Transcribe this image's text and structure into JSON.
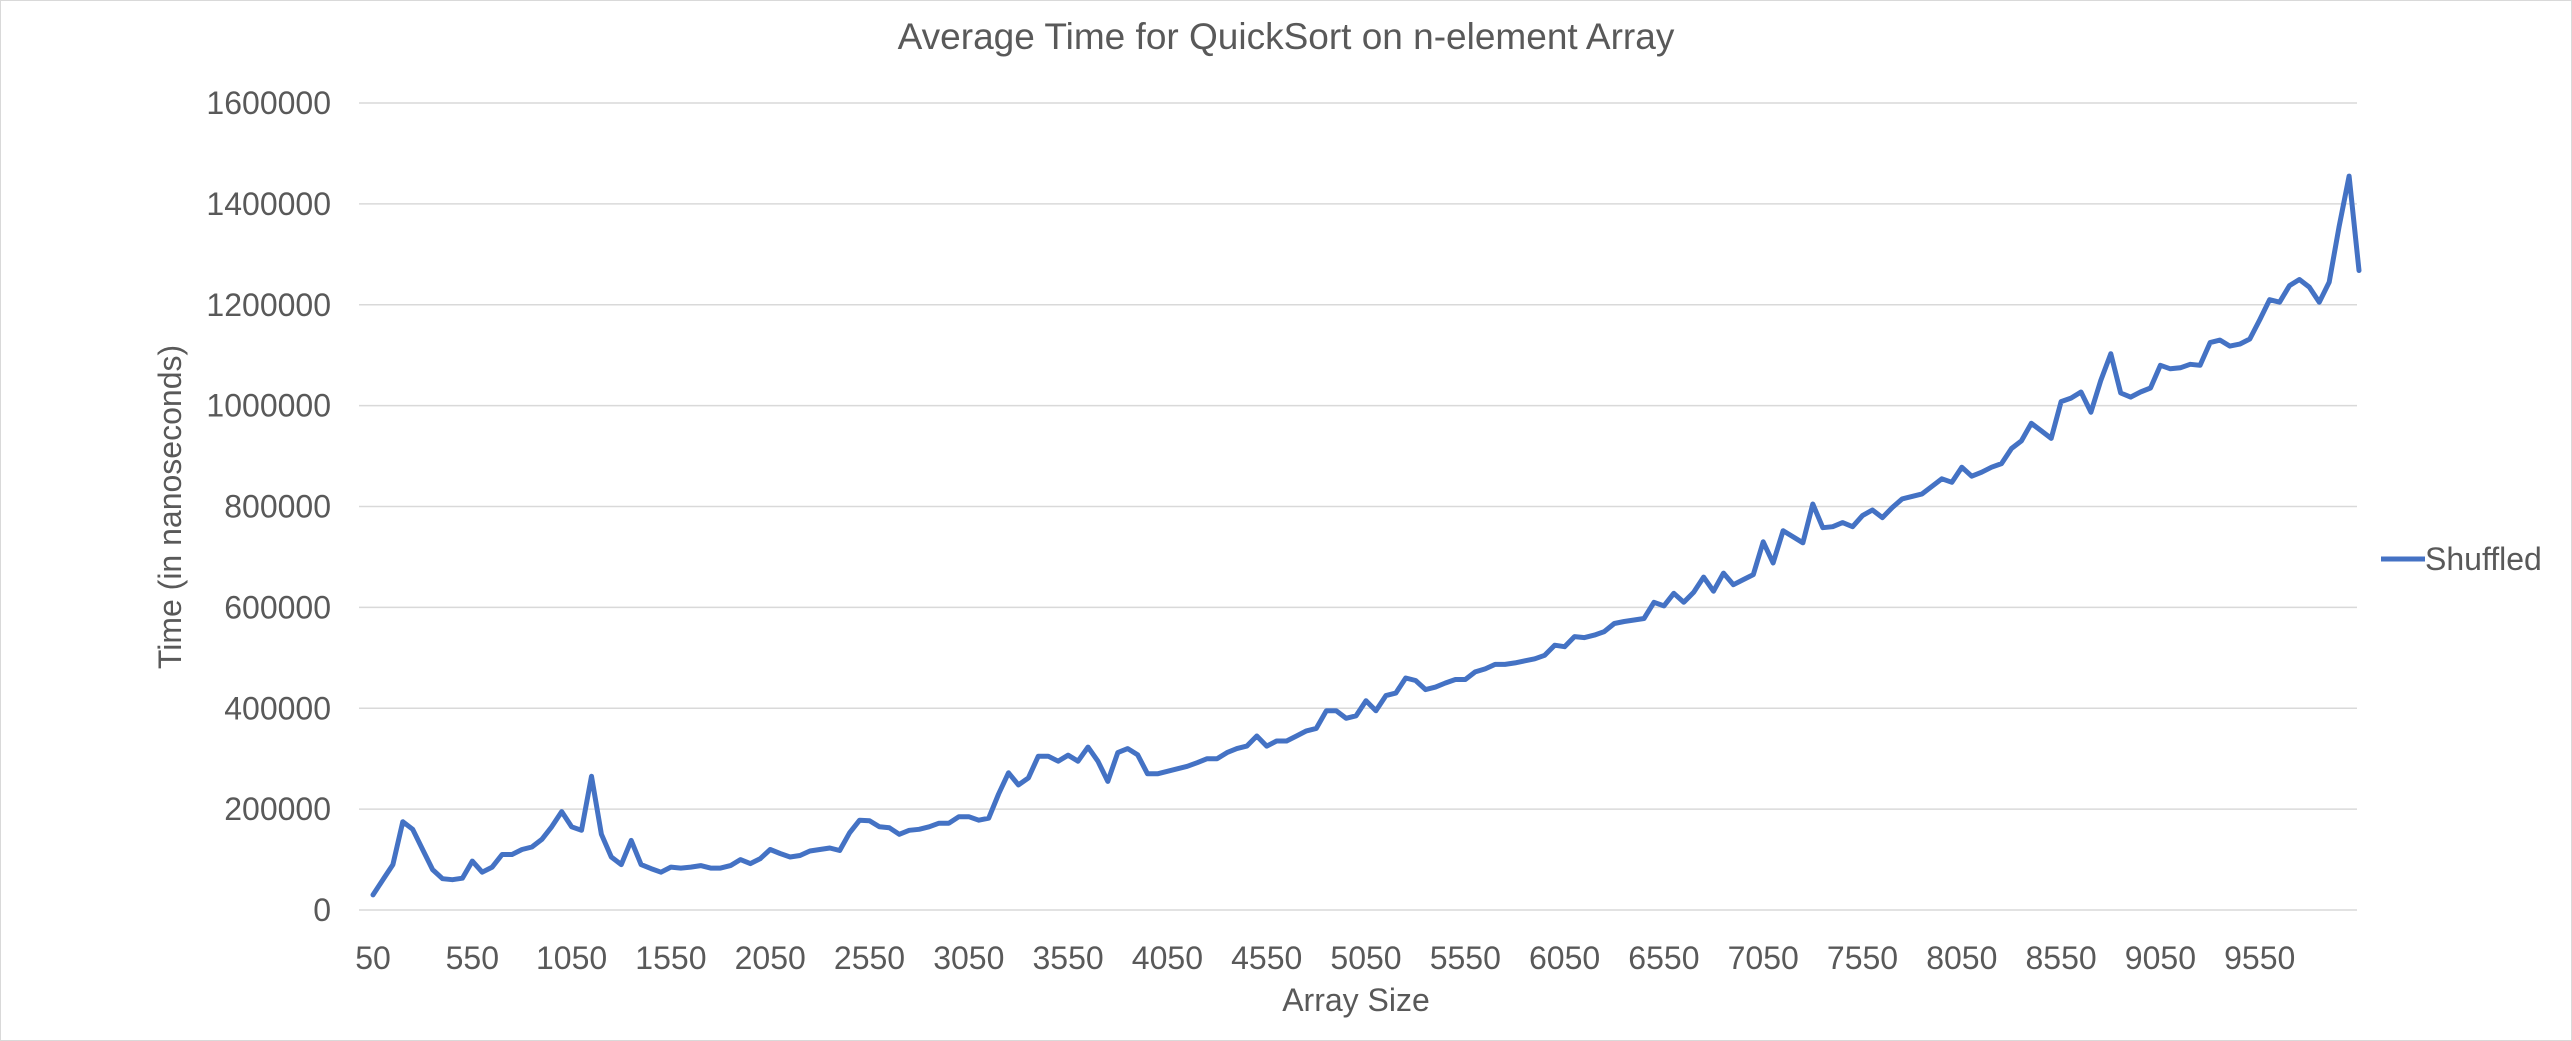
{
  "chart_data": {
    "type": "line",
    "title": "Average Time for QuickSort on n-element Array",
    "xlabel": "Array Size",
    "ylabel": "Time (in nanoseconds)",
    "ylim": [
      0,
      1600000
    ],
    "yticks": [
      "0",
      "200000",
      "400000",
      "600000",
      "800000",
      "1000000",
      "1200000",
      "1400000",
      "1600000"
    ],
    "xticks": [
      "50",
      "550",
      "1050",
      "1550",
      "2050",
      "2550",
      "3050",
      "3550",
      "4050",
      "4550",
      "5050",
      "5550",
      "6050",
      "6550",
      "7050",
      "7550",
      "8050",
      "8550",
      "9050",
      "9550"
    ],
    "grid": true,
    "legend_position": "right",
    "colors": {
      "series": "#4472c4",
      "grid": "#d9d9d9",
      "text": "#595959"
    },
    "x": [
      50,
      100,
      150,
      200,
      250,
      300,
      350,
      400,
      450,
      500,
      550,
      600,
      650,
      700,
      750,
      800,
      850,
      900,
      950,
      1000,
      1050,
      1100,
      1150,
      1200,
      1250,
      1300,
      1350,
      1400,
      1450,
      1500,
      1550,
      1600,
      1650,
      1700,
      1750,
      1800,
      1850,
      1900,
      1950,
      2000,
      2050,
      2100,
      2150,
      2200,
      2250,
      2300,
      2350,
      2400,
      2450,
      2500,
      2550,
      2600,
      2650,
      2700,
      2750,
      2800,
      2850,
      2900,
      2950,
      3000,
      3050,
      3100,
      3150,
      3200,
      3250,
      3300,
      3350,
      3400,
      3450,
      3500,
      3550,
      3600,
      3650,
      3700,
      3750,
      3800,
      3850,
      3900,
      3950,
      4000,
      4050,
      4100,
      4150,
      4200,
      4250,
      4300,
      4350,
      4400,
      4450,
      4500,
      4550,
      4600,
      4650,
      4700,
      4750,
      4800,
      4850,
      4900,
      4950,
      5000,
      5050,
      5100,
      5150,
      5200,
      5250,
      5300,
      5350,
      5400,
      5450,
      5500,
      5550,
      5600,
      5650,
      5700,
      5750,
      5800,
      5850,
      5900,
      5950,
      6000,
      6050,
      6100,
      6150,
      6200,
      6250,
      6300,
      6350,
      6400,
      6450,
      6500,
      6550,
      6600,
      6650,
      6700,
      6750,
      6800,
      6850,
      6900,
      6950,
      7000,
      7050,
      7100,
      7150,
      7200,
      7250,
      7300,
      7350,
      7400,
      7450,
      7500,
      7550,
      7600,
      7650,
      7700,
      7750,
      7800,
      7850,
      7900,
      7950,
      8000,
      8050,
      8100,
      8150,
      8200,
      8250,
      8300,
      8350,
      8400,
      8450,
      8500,
      8550,
      8600,
      8650,
      8700,
      8750,
      8800,
      8850,
      8900,
      8950,
      9000,
      9050,
      9100,
      9150,
      9200,
      9250,
      9300,
      9350,
      9400,
      9450,
      9500,
      9550,
      9600,
      9650,
      9700,
      9750,
      9800,
      9850,
      9900,
      9950,
      10000,
      10050
    ],
    "series": [
      {
        "name": "Shuffled",
        "values": [
          30000,
          60000,
          90000,
          175000,
          160000,
          120000,
          80000,
          62000,
          60000,
          63000,
          97000,
          75000,
          85000,
          110000,
          110000,
          120000,
          125000,
          140000,
          165000,
          195000,
          165000,
          158000,
          265000,
          150000,
          105000,
          90000,
          138000,
          90000,
          82000,
          75000,
          85000,
          83000,
          85000,
          88000,
          83000,
          83000,
          88000,
          100000,
          92000,
          102000,
          120000,
          112000,
          105000,
          108000,
          117000,
          120000,
          123000,
          118000,
          153000,
          178000,
          177000,
          165000,
          163000,
          150000,
          158000,
          160000,
          165000,
          172000,
          172000,
          185000,
          185000,
          178000,
          182000,
          230000,
          272000,
          248000,
          262000,
          305000,
          305000,
          295000,
          307000,
          295000,
          323000,
          295000,
          255000,
          312000,
          320000,
          308000,
          270000,
          270000,
          275000,
          280000,
          285000,
          292000,
          300000,
          300000,
          312000,
          320000,
          325000,
          345000,
          325000,
          335000,
          335000,
          345000,
          355000,
          360000,
          395000,
          395000,
          380000,
          385000,
          415000,
          395000,
          425000,
          430000,
          460000,
          455000,
          437000,
          442000,
          450000,
          457000,
          457000,
          472000,
          478000,
          487000,
          487000,
          490000,
          494000,
          498000,
          505000,
          525000,
          522000,
          542000,
          540000,
          545000,
          552000,
          568000,
          572000,
          575000,
          578000,
          610000,
          603000,
          628000,
          610000,
          630000,
          660000,
          632000,
          668000,
          645000,
          655000,
          665000,
          730000,
          688000,
          752000,
          740000,
          728000,
          805000,
          758000,
          760000,
          768000,
          760000,
          782000,
          793000,
          778000,
          798000,
          815000,
          820000,
          825000,
          840000,
          855000,
          848000,
          878000,
          860000,
          868000,
          878000,
          885000,
          915000,
          930000,
          965000,
          950000,
          935000,
          1008000,
          1015000,
          1027000,
          987000,
          1050000,
          1103000,
          1025000,
          1017000,
          1027000,
          1035000,
          1080000,
          1073000,
          1075000,
          1082000,
          1080000,
          1125000,
          1130000,
          1118000,
          1122000,
          1132000,
          1170000,
          1210000,
          1205000,
          1238000,
          1250000,
          1235000,
          1205000,
          1245000,
          1355000,
          1455000,
          1268000
        ]
      }
    ]
  }
}
